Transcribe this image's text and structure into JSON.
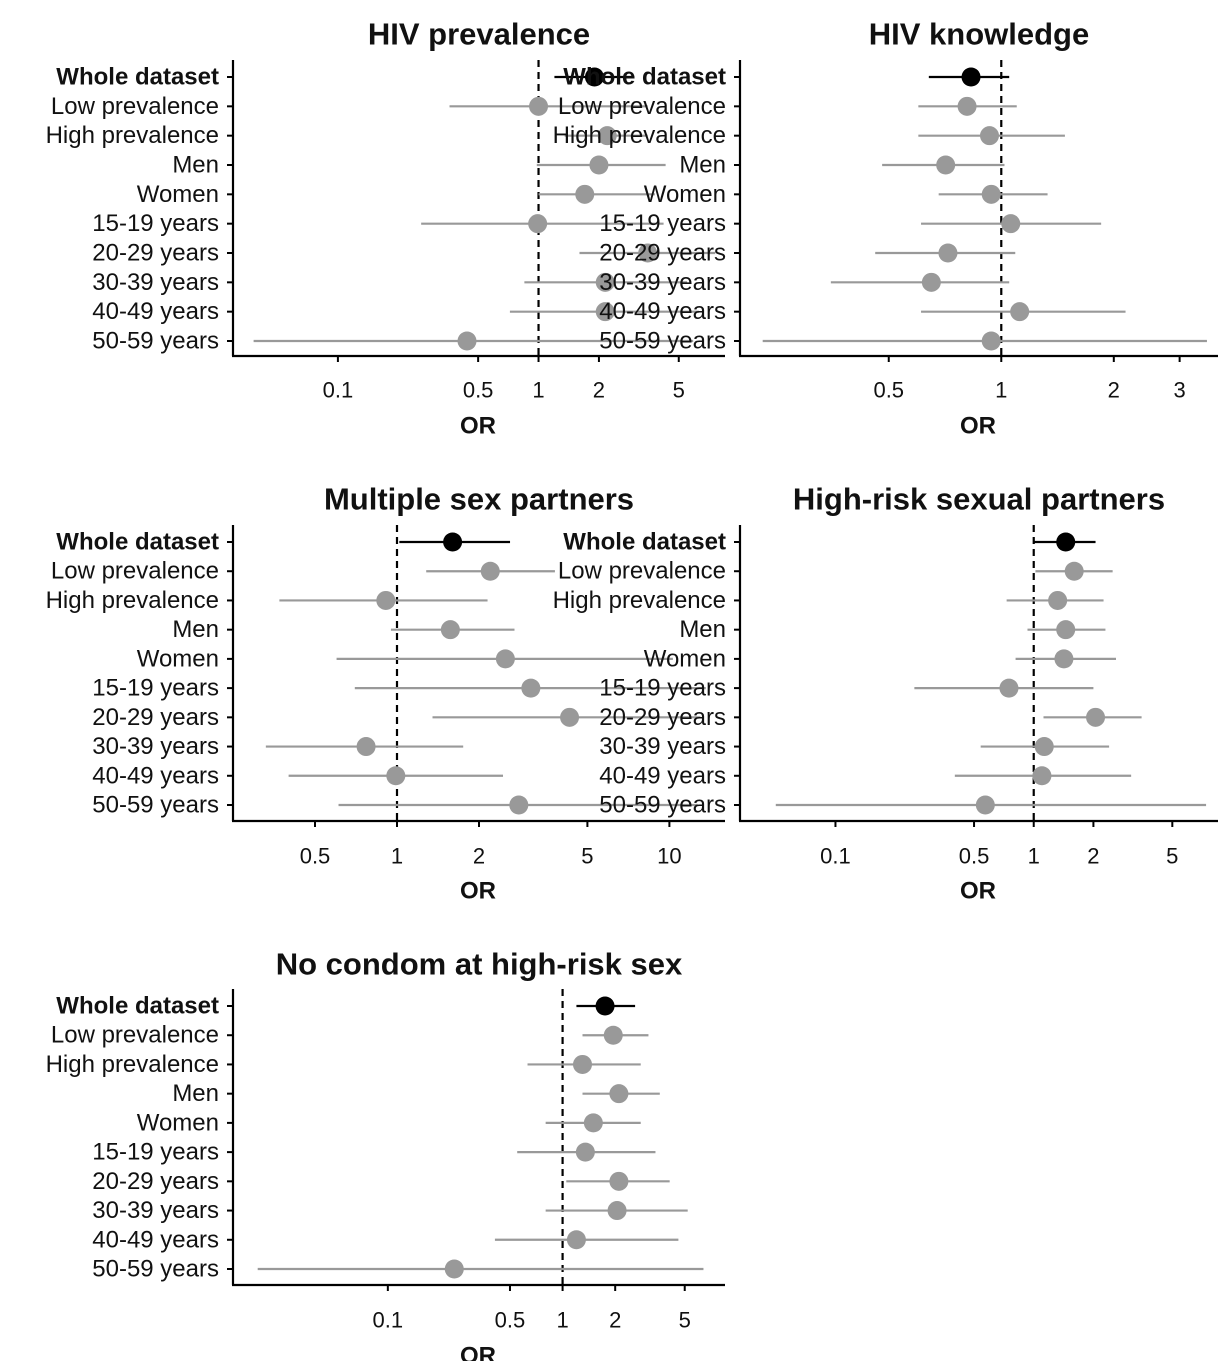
{
  "colors": {
    "highlight": "#000000",
    "subgroup": "#999999",
    "axis": "#000000"
  },
  "chart_data": [
    {
      "type": "scatter",
      "title": "HIV prevalence",
      "xlabel": "OR",
      "xscale": "log",
      "xlim": [
        0.03,
        8.5
      ],
      "xticks": [
        0.1,
        0.5,
        1,
        2,
        5
      ],
      "xtick_labels": [
        "0.1",
        "0.5",
        "1",
        "2",
        "5"
      ],
      "reference_line": 1,
      "categories": [
        "Whole dataset",
        "Low prevalence",
        "High prevalence",
        "Men",
        "Women",
        "15-19 years",
        "20-29 years",
        "30-39 years",
        "40-49 years",
        "50-59 years"
      ],
      "or": [
        1.9,
        1.0,
        2.2,
        2.0,
        1.7,
        0.99,
        3.5,
        2.15,
        2.15,
        0.44
      ],
      "lower": [
        1.2,
        0.36,
        1.35,
        0.98,
        1.0,
        0.26,
        1.6,
        0.85,
        0.72,
        0.038
      ],
      "upper": [
        3.0,
        3.5,
        3.5,
        4.3,
        3.8,
        4.2,
        7.6,
        5.5,
        6.3,
        5.9
      ]
    },
    {
      "type": "scatter",
      "title": "HIV knowledge",
      "xlabel": "OR",
      "xscale": "log",
      "xlim": [
        0.2,
        3.8
      ],
      "xticks": [
        0.5,
        1,
        2,
        3
      ],
      "xtick_labels": [
        "0.5",
        "1",
        "2",
        "3"
      ],
      "reference_line": 1,
      "categories": [
        "Whole dataset",
        "Low prevalence",
        "High prevalence",
        "Men",
        "Women",
        "15-19 years",
        "20-29 years",
        "30-39 years",
        "40-49 years",
        "50-59 years"
      ],
      "or": [
        0.83,
        0.81,
        0.93,
        0.71,
        0.94,
        1.06,
        0.72,
        0.65,
        1.12,
        0.94
      ],
      "lower": [
        0.64,
        0.6,
        0.6,
        0.48,
        0.68,
        0.61,
        0.46,
        0.35,
        0.61,
        0.23
      ],
      "upper": [
        1.05,
        1.1,
        1.48,
        1.02,
        1.33,
        1.85,
        1.09,
        1.05,
        2.15,
        3.55
      ]
    },
    {
      "type": "scatter",
      "title": "Multiple sex partners",
      "xlabel": "OR",
      "xscale": "log",
      "xlim": [
        0.25,
        16
      ],
      "xticks": [
        0.5,
        1,
        2,
        5,
        10
      ],
      "xtick_labels": [
        "0.5",
        "1",
        "2",
        "5",
        "10"
      ],
      "reference_line": 1,
      "categories": [
        "Whole dataset",
        "Low prevalence",
        "High prevalence",
        "Men",
        "Women",
        "15-19 years",
        "20-29 years",
        "30-39 years",
        "40-49 years",
        "50-59 years"
      ],
      "or": [
        1.6,
        2.2,
        0.91,
        1.57,
        2.5,
        3.1,
        4.3,
        0.77,
        0.99,
        2.8
      ],
      "lower": [
        1.02,
        1.28,
        0.37,
        0.95,
        0.6,
        0.7,
        1.35,
        0.33,
        0.4,
        0.61
      ],
      "upper": [
        2.6,
        3.8,
        2.15,
        2.7,
        10.3,
        13.6,
        13.0,
        1.75,
        2.45,
        12.7
      ]
    },
    {
      "type": "scatter",
      "title": "High-risk sexual partners",
      "xlabel": "OR",
      "xscale": "log",
      "xlim": [
        0.033,
        8.5
      ],
      "xticks": [
        0.1,
        0.5,
        1,
        2,
        5
      ],
      "xtick_labels": [
        "0.1",
        "0.5",
        "1",
        "2",
        "5"
      ],
      "reference_line": 1,
      "categories": [
        "Whole dataset",
        "Low prevalence",
        "High prevalence",
        "Men",
        "Women",
        "15-19 years",
        "20-29 years",
        "30-39 years",
        "40-49 years",
        "50-59 years"
      ],
      "or": [
        1.45,
        1.6,
        1.32,
        1.45,
        1.42,
        0.75,
        2.05,
        1.13,
        1.1,
        0.57
      ],
      "lower": [
        1.0,
        1.02,
        0.73,
        0.93,
        0.81,
        0.25,
        1.12,
        0.54,
        0.4,
        0.05
      ],
      "upper": [
        2.05,
        2.5,
        2.25,
        2.3,
        2.6,
        2.0,
        3.5,
        2.4,
        3.1,
        7.4
      ]
    },
    {
      "type": "scatter",
      "title": "No condom at high-risk sex",
      "xlabel": "OR",
      "xscale": "log",
      "xlim": [
        0.013,
        8.5
      ],
      "xticks": [
        0.1,
        0.5,
        1,
        2,
        5
      ],
      "xtick_labels": [
        "0.1",
        "0.5",
        "1",
        "2",
        "5"
      ],
      "reference_line": 1,
      "categories": [
        "Whole dataset",
        "Low prevalence",
        "High prevalence",
        "Men",
        "Women",
        "15-19 years",
        "20-29 years",
        "30-39 years",
        "40-49 years",
        "50-59 years"
      ],
      "or": [
        1.75,
        1.95,
        1.3,
        2.1,
        1.5,
        1.35,
        2.1,
        2.05,
        1.2,
        0.24
      ],
      "lower": [
        1.2,
        1.3,
        0.63,
        1.3,
        0.8,
        0.55,
        1.05,
        0.8,
        0.41,
        0.018
      ],
      "upper": [
        2.6,
        3.1,
        2.8,
        3.6,
        2.8,
        3.4,
        4.1,
        5.2,
        4.6,
        6.4
      ]
    }
  ]
}
